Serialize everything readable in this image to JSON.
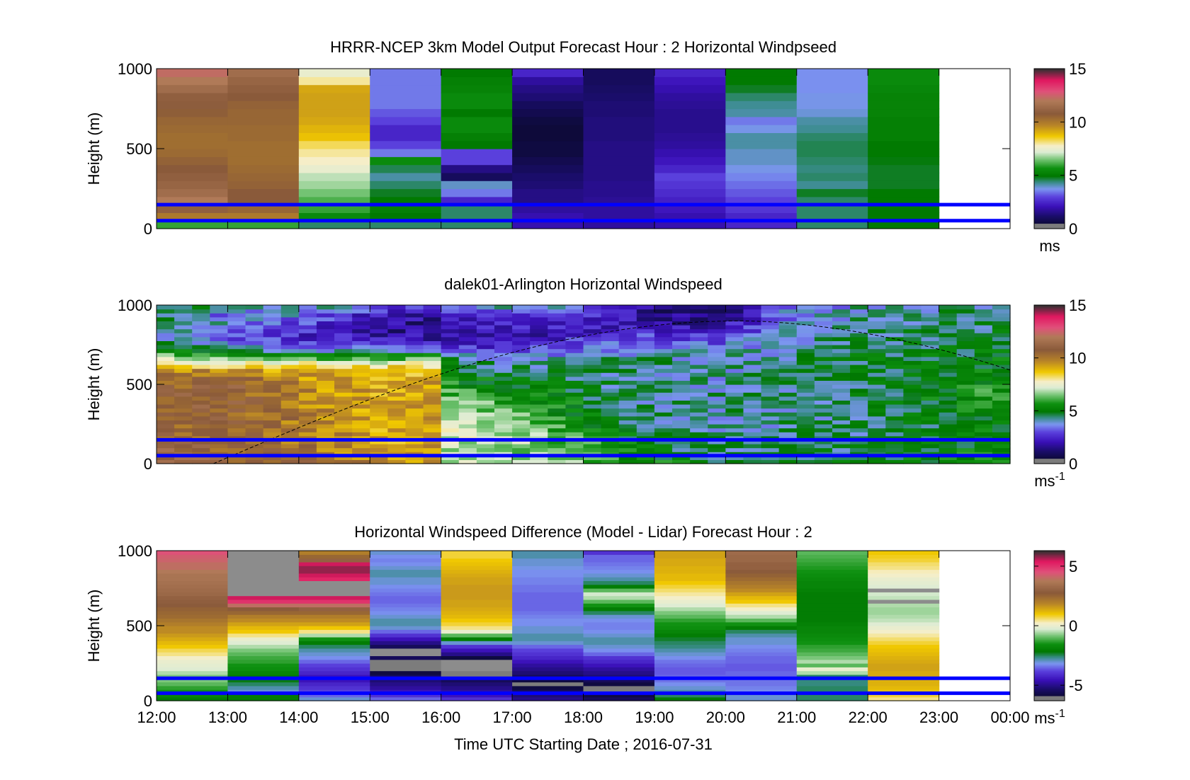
{
  "colors": {
    "reference_line": "#0000ff",
    "axes": "#000000",
    "missing": "#8c8c8c"
  },
  "xlabel": "Time UTC  Starting Date ; 2016-07-31",
  "x_tick_labels": [
    "12:00",
    "13:00",
    "14:00",
    "15:00",
    "16:00",
    "17:00",
    "18:00",
    "19:00",
    "20:00",
    "21:00",
    "22:00",
    "23:00",
    "00:00"
  ],
  "chart_data": [
    {
      "type": "heatmap",
      "title": "HRRR-NCEP 3km Model Output   Forecast Hour : 2 Horizontal Windpseed",
      "ylabel": "Height (m)",
      "colorbar_label": "ms",
      "colorbar_sup": "",
      "colorbar_ticks": [
        "0",
        "5",
        "10",
        "15"
      ],
      "colorbar_tick_values": [
        0,
        5,
        10,
        15
      ],
      "clim": [
        0,
        15
      ],
      "ylim": [
        0,
        1000
      ],
      "y_ticks": [
        0,
        500,
        1000
      ],
      "reference_heights": [
        50,
        150
      ],
      "bin_height": 50,
      "columns": [
        {
          "x": 12,
          "v": [
            6,
            10,
            11,
            12,
            11.5,
            11.2,
            11,
            10.8,
            10.6,
            10.4,
            10.3,
            10.3,
            10.4,
            10.5,
            10.7,
            10.9,
            11,
            11.5,
            12,
            12.3
          ]
        },
        {
          "x": 13,
          "v": [
            6,
            10,
            10.5,
            10.8,
            10.8,
            10.6,
            10.5,
            10.4,
            10.3,
            10.3,
            10.3,
            10.4,
            10.4,
            10.5,
            10.5,
            10.6,
            10.8,
            11,
            11.2,
            11.5
          ]
        },
        {
          "x": 14,
          "v": [
            4.5,
            5.5,
            6,
            6.2,
            6.5,
            6.8,
            7,
            7.5,
            7.8,
            8,
            8.3,
            8.8,
            9,
            9.2,
            9.3,
            9.3,
            9.3,
            9.2,
            8,
            7.5
          ]
        },
        {
          "x": 15,
          "v": [
            4.5,
            5,
            5.2,
            5,
            4.8,
            4.5,
            4.2,
            4.6,
            5.5,
            3.5,
            3,
            2.5,
            2.5,
            3,
            3.2,
            3.5,
            3.5,
            3.5,
            3.5,
            3.5
          ]
        },
        {
          "x": 16,
          "v": [
            4.5,
            4.5,
            4.5,
            2.5,
            3.5,
            4,
            1,
            1.5,
            3,
            3,
            5,
            5.2,
            5.5,
            5.5,
            5,
            5.5,
            5.5,
            5.3,
            5.2,
            5
          ]
        },
        {
          "x": 17,
          "v": [
            2,
            2,
            1.8,
            1.5,
            1.5,
            1.3,
            1.2,
            1,
            0.8,
            0.6,
            0.6,
            0.5,
            0.5,
            0.6,
            0.8,
            1,
            1.3,
            1.5,
            1.8,
            2.5
          ]
        },
        {
          "x": 18,
          "v": [
            1.8,
            1.8,
            1.8,
            1.7,
            1.6,
            1.6,
            1.5,
            1.5,
            1.5,
            1.5,
            1.5,
            1.4,
            1.4,
            1.4,
            1.3,
            1.3,
            1.2,
            1.1,
            1,
            1
          ]
        },
        {
          "x": 19,
          "v": [
            2,
            2,
            2.2,
            2.4,
            2.6,
            2.8,
            3,
            2.5,
            2.2,
            2,
            1.8,
            1.7,
            1.6,
            1.6,
            1.6,
            1.7,
            1.8,
            2,
            2.2,
            2.5
          ]
        },
        {
          "x": 20,
          "v": [
            2.5,
            2.5,
            2.8,
            3,
            3.2,
            3.4,
            3.6,
            3.8,
            4,
            4,
            4.2,
            4.2,
            3.8,
            3.5,
            4.2,
            4.3,
            4.5,
            4.8,
            5,
            5
          ]
        },
        {
          "x": 21,
          "v": [
            4.5,
            4.5,
            4.5,
            4.5,
            4.8,
            4.3,
            4.5,
            4.4,
            4.5,
            4.6,
            4.6,
            4.5,
            4.3,
            4.2,
            3.9,
            3.8,
            3.8,
            3.7,
            3.7,
            3.7
          ]
        },
        {
          "x": 22,
          "v": [
            5,
            5,
            5,
            5,
            5,
            4.8,
            4.8,
            4.8,
            4.9,
            5,
            5,
            5.2,
            5.2,
            5.2,
            5.3,
            5.3,
            5.3,
            5.4,
            5.5,
            5.5
          ]
        }
      ]
    },
    {
      "type": "heatmap",
      "title": "dalek01-Arlington  Horizontal Windspeed",
      "ylabel": "Height (m)",
      "colorbar_label": "ms",
      "colorbar_sup": "-1",
      "colorbar_ticks": [
        "0",
        "5",
        "10",
        "15"
      ],
      "colorbar_tick_values": [
        0,
        5,
        10,
        15
      ],
      "clim": [
        0,
        15
      ],
      "ylim": [
        0,
        1000
      ],
      "y_ticks": [
        0,
        500,
        1000
      ],
      "reference_heights": [
        50,
        150
      ],
      "bin_height": 25,
      "profile_time_step_hours": 0.25,
      "data_end_hour": 23.8,
      "boundary_layer_curve": {
        "t_start": 12.8,
        "t_peak": 20.2,
        "t_end": 24,
        "h_peak": 900,
        "h_end": 590
      },
      "profile_anchors": [
        {
          "t": 12,
          "v": [
            11.5,
            11,
            10.8,
            10.5,
            10.5,
            10.6,
            10.7,
            10.6,
            10.5,
            10,
            7,
            5,
            4,
            5,
            4,
            5
          ]
        },
        {
          "t": 13,
          "v": [
            11,
            10.8,
            10.6,
            10.5,
            10.6,
            10.7,
            10.8,
            10.9,
            10.9,
            9,
            6,
            4,
            3,
            4,
            3.5,
            4.5
          ]
        },
        {
          "t": 14,
          "v": [
            10.5,
            10.2,
            10,
            10,
            10,
            9.9,
            9.8,
            9.7,
            9.5,
            9.2,
            6,
            3.5,
            2.5,
            3,
            3.5,
            4.5
          ]
        },
        {
          "t": 15.3,
          "v": [
            9.5,
            9.3,
            9.2,
            9.2,
            9.2,
            9.2,
            9.2,
            9.2,
            9.2,
            9,
            6,
            3,
            2,
            1.5,
            2,
            3
          ]
        },
        {
          "t": 15.95,
          "v": [
            9.3,
            9.3,
            9.3,
            9.3,
            9.3,
            9.3,
            9.3,
            9.3,
            9.2,
            8.8,
            6,
            3,
            1.8,
            1.5,
            1.8,
            3
          ]
        },
        {
          "t": 16.05,
          "v": [
            7,
            7,
            7.2,
            7.3,
            7,
            6.8,
            6.5,
            6,
            5.5,
            5,
            4.5,
            3,
            2,
            2,
            2.5,
            3.5
          ]
        },
        {
          "t": 17,
          "v": [
            6.5,
            6.8,
            7,
            6.8,
            6.5,
            6.2,
            6,
            5.5,
            5,
            4.5,
            4,
            2.5,
            2,
            2.5,
            3,
            4.5
          ]
        },
        {
          "t": 18,
          "v": [
            6.5,
            6.3,
            6,
            5.8,
            5.5,
            5.2,
            5,
            4.8,
            4.5,
            4.5,
            4.2,
            3.5,
            2.5,
            2.2,
            2.5,
            3.5
          ]
        },
        {
          "t": 19,
          "v": [
            5.5,
            5,
            4.8,
            4.5,
            4.3,
            4.3,
            4.2,
            4.2,
            4.3,
            4.3,
            4.2,
            3.8,
            3,
            2,
            1.5,
            1.5
          ]
        },
        {
          "t": 20,
          "v": [
            4.8,
            4.5,
            4.3,
            4.2,
            4.2,
            4.3,
            4.2,
            4.2,
            4.1,
            4,
            4,
            3.5,
            3,
            2.2,
            1.5,
            1.2
          ]
        },
        {
          "t": 21,
          "v": [
            4.8,
            4.6,
            4.4,
            4.3,
            4.3,
            4.3,
            4.3,
            4.3,
            4.4,
            4.5,
            4.5,
            4.3,
            4.2,
            4,
            3.8,
            3.5
          ]
        },
        {
          "t": 22,
          "v": [
            5,
            4.8,
            4.6,
            4.5,
            4.5,
            4.5,
            4.6,
            4.7,
            4.7,
            4.8,
            4.8,
            4.7,
            4.5,
            4.5,
            4.2,
            4
          ]
        },
        {
          "t": 23.8,
          "v": [
            5.5,
            5.5,
            5.3,
            5.2,
            5.2,
            5.4,
            5.6,
            5.8,
            5.6,
            5.2,
            5,
            4.8,
            4.8,
            4.6,
            4.5,
            4.4
          ]
        }
      ]
    },
    {
      "type": "heatmap",
      "title": "Horizontal Windspeed Difference (Model - Lidar) Forecast Hour : 2",
      "ylabel": "Height (m)",
      "colorbar_label": "ms",
      "colorbar_sup": "-1",
      "colorbar_ticks": [
        "-5",
        "0",
        "5"
      ],
      "colorbar_tick_values": [
        -5,
        0,
        5
      ],
      "clim": [
        -6.3,
        6.3
      ],
      "ylim": [
        0,
        1000
      ],
      "y_ticks": [
        0,
        500,
        1000
      ],
      "reference_heights": [
        50,
        150
      ],
      "bin_height": 25,
      "columns": [
        {
          "x": 12,
          "v": [
            -2,
            -1.8,
            -1.5,
            -1.3,
            -1,
            -0.8,
            -0.8,
            -0.5,
            -0.2,
            -0.1,
            0,
            0.2,
            0.5,
            0.7,
            1,
            1.2,
            1.4,
            1.6,
            1.8,
            1.8,
            2,
            2.2,
            2.4,
            2.5,
            2.6,
            2.8,
            2.9,
            3,
            3.2,
            3.3,
            3.4,
            3.5,
            3.6,
            3.6,
            3.8,
            4,
            4,
            4.2,
            4.3,
            4.5
          ]
        },
        {
          "x": 13,
          "v": [
            -2,
            -2,
            -3,
            -2.8,
            -2.5,
            -2.2,
            -2,
            -1.8,
            -1.6,
            -1.5,
            -1.3,
            -1.2,
            -1,
            -0.8,
            -0.5,
            -0.2,
            0,
            0.5,
            1,
            1.2,
            1.5,
            1.8,
            2,
            2.5,
            2.8,
            4,
            5,
            5.5,
            null,
            null,
            null,
            null,
            null,
            null,
            null,
            null,
            null,
            null,
            null,
            null
          ]
        },
        {
          "x": 14,
          "v": [
            -3,
            -3.5,
            -3.8,
            -4,
            -4.2,
            -4.5,
            -4.5,
            -4.2,
            -4,
            -3.8,
            -3.5,
            -3.2,
            -3,
            -2.8,
            -2.5,
            -2,
            -1.5,
            -0.5,
            0.5,
            1,
            1.5,
            1.8,
            2,
            2.5,
            3,
            4,
            5,
            5.5,
            null,
            null,
            null,
            null,
            5.2,
            5.5,
            5.8,
            5.8,
            5.5,
            3,
            2.5,
            2
          ]
        },
        {
          "x": 15,
          "v": [
            -3.5,
            -4,
            -4.5,
            -4.8,
            -5,
            -5.2,
            -5.5,
            -5.8,
            -6,
            -6.2,
            -6,
            -5.5,
            null,
            null,
            -5.5,
            -5,
            -4.5,
            -4,
            -3.5,
            -3,
            -2.8,
            -2.8,
            -3,
            -3.2,
            -3.3,
            -3.4,
            -3.5,
            -3.5,
            -3.4,
            -3.3,
            -3.2,
            -3,
            -3,
            -2.8,
            -2.8,
            -3,
            -3.2,
            -3.3,
            -3.2,
            -3
          ]
        },
        {
          "x": 16,
          "v": [
            -4,
            -4.5,
            -4.8,
            -5,
            -5.2,
            -5.5,
            -6,
            -6.2,
            null,
            null,
            null,
            -5.8,
            -5,
            -4.5,
            -4,
            -3,
            -2,
            -1,
            0,
            0.5,
            0.8,
            1,
            1.2,
            1.3,
            1.4,
            1.5,
            1.5,
            1.6,
            1.6,
            1.6,
            1.6,
            1.5,
            1.5,
            1.4,
            1.3,
            1.2,
            1.1,
            1,
            0.8,
            0.8
          ]
        },
        {
          "x": 17,
          "v": [
            -5,
            -5.2,
            -5.5,
            -5.8,
            -6,
            -5.8,
            -5.5,
            -5.2,
            -5,
            -4.8,
            -4.5,
            -4.2,
            -4,
            -3.8,
            -3.5,
            -3,
            -2.8,
            -2.8,
            -3,
            -3,
            -3.2,
            -3.2,
            -3.3,
            -3.4,
            -3.5,
            -3.5,
            -3.5,
            -3.5,
            -3.5,
            -3.4,
            -3.4,
            -3.3,
            -3.3,
            -3.2,
            -3.2,
            -3.1,
            -3,
            -3,
            -2.8,
            -2.8
          ]
        },
        {
          "x": 18,
          "v": [
            -5.5,
            -5.8,
            -6,
            -6,
            -5.8,
            -5.5,
            -5.2,
            -5,
            -4.8,
            -4.5,
            -4.2,
            -4,
            -3.5,
            -3.2,
            -3,
            -2.8,
            -2.8,
            -3,
            -3.2,
            -3.3,
            -3.3,
            -3.2,
            -3,
            -2.5,
            -2,
            -1.5,
            -1,
            -0.5,
            -0.3,
            -1,
            -2,
            -2.5,
            -2.8,
            -3,
            -3.2,
            -3.3,
            -3.4,
            -3.5,
            -3.5,
            -4
          ]
        },
        {
          "x": 19,
          "v": [
            -2,
            -2.5,
            -2.8,
            -3,
            -3.2,
            -3.4,
            -3.5,
            -3.6,
            -3.6,
            -3.5,
            -3.4,
            -3.2,
            -3,
            -2.8,
            -2.6,
            -2.5,
            -2.3,
            -2,
            -1.8,
            -1.6,
            -1.5,
            -1.3,
            -1,
            -0.8,
            -0.5,
            -0.2,
            0,
            0.2,
            0.4,
            0.6,
            0.8,
            1,
            1.2,
            1.2,
            1.3,
            1.3,
            1.4,
            1.4,
            1.5,
            1.5
          ]
        },
        {
          "x": 20,
          "v": [
            -3,
            -3,
            -3.2,
            -3.3,
            -3.4,
            -3.4,
            -3.5,
            -3.5,
            -3.6,
            -3.6,
            -3.5,
            -3.5,
            -3.4,
            -3.3,
            -3.2,
            -3,
            -3,
            -2.8,
            -2.5,
            -2,
            -1.5,
            -1,
            -0.5,
            -0.2,
            0.2,
            0.5,
            1,
            1.2,
            1.5,
            1.8,
            2,
            2.2,
            2.4,
            2.6,
            2.8,
            3,
            3,
            3.2,
            3.2,
            3.3
          ]
        },
        {
          "x": 21,
          "v": [
            -2.5,
            -2.5,
            -2.5,
            -2.5,
            -2.6,
            -2.6,
            -2.5,
            -0.5,
            0,
            -1,
            -0.5,
            -0.8,
            -1,
            -1.2,
            -1.3,
            -1.5,
            -1.6,
            -1.7,
            -1.8,
            -1.8,
            -1.9,
            -2,
            -2,
            -2,
            -2,
            -2,
            -2,
            -2,
            -2,
            -1.9,
            -1.8,
            -1.8,
            -1.7,
            -1.6,
            -1.5,
            -1.4,
            -1.3,
            -1.2,
            -1.1,
            -1
          ]
        },
        {
          "x": 22,
          "v": [
            0.5,
            0.8,
            1,
            1.2,
            1.3,
            1.3,
            1.4,
            1.4,
            1.5,
            1.5,
            1.4,
            1.3,
            1.2,
            1.1,
            1,
            0.8,
            0.6,
            0.4,
            0.2,
            0,
            -0.2,
            -0.4,
            -0.5,
            -0.6,
            -0.6,
            -0.5,
            null,
            -0.4,
            -0.3,
            null,
            -0.2,
            -0.1,
            0,
            0.2,
            0.3,
            0.5,
            0.6,
            0.8,
            0.9,
            1
          ]
        }
      ]
    }
  ]
}
